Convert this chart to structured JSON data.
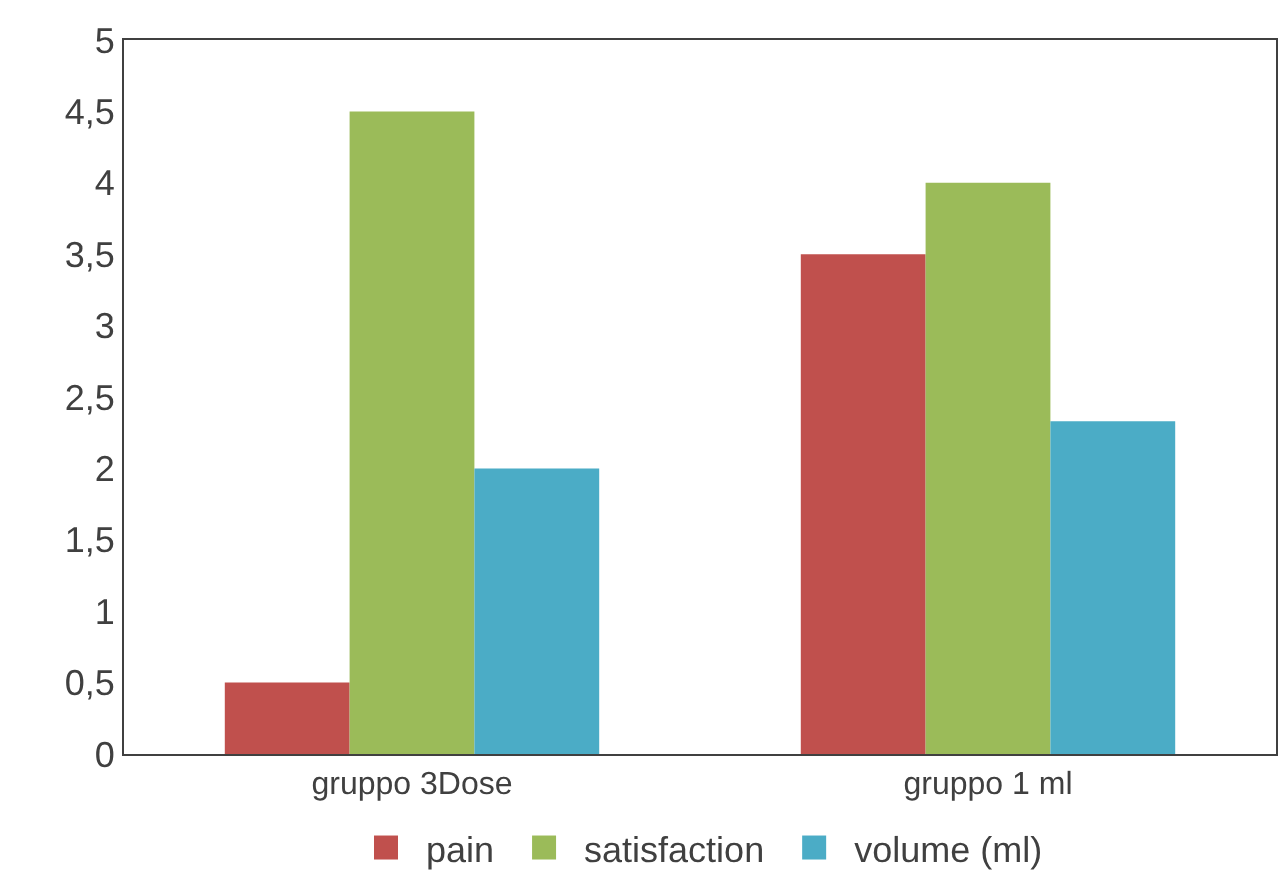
{
  "chart_data": {
    "type": "bar",
    "categories": [
      "gruppo 3Dose",
      "gruppo 1 ml"
    ],
    "series": [
      {
        "name": "pain",
        "color": "#c0504d",
        "values": [
          0.5,
          3.5
        ]
      },
      {
        "name": "satisfaction",
        "color": "#9bbb59",
        "values": [
          4.5,
          4
        ]
      },
      {
        "name": "volume (ml)",
        "color": "#4bacc6",
        "values": [
          2,
          2.33
        ]
      }
    ],
    "ylim": [
      0,
      5
    ],
    "yticks": [
      0,
      {
        "value": 0.5,
        "label": "0,5"
      },
      1,
      {
        "value": 1.5,
        "label": "1,5"
      },
      2,
      {
        "value": 2.5,
        "label": "2,5"
      },
      3,
      {
        "value": 3.5,
        "label": "3,5"
      },
      4,
      {
        "value": 4.5,
        "label": "4,5"
      },
      5
    ],
    "grid": false,
    "legend": "bottom"
  }
}
